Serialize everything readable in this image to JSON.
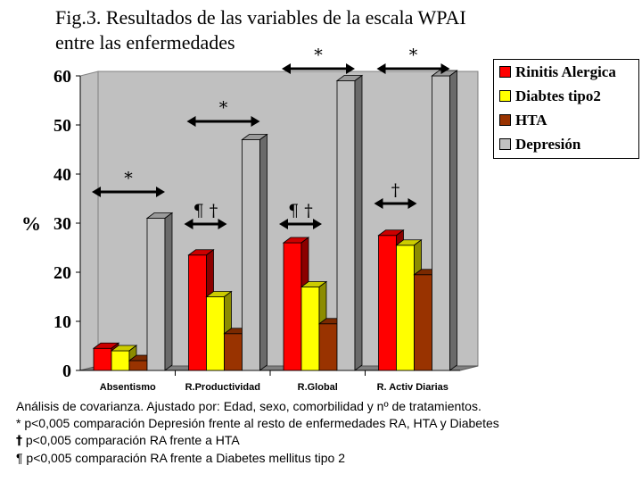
{
  "title": {
    "line1": "Fig.3.  Resultados de las variables de la escala WPAI",
    "line2": "entre las enfermedades"
  },
  "chart_data": {
    "type": "bar",
    "style": "3d-clustered-column",
    "categories": [
      "Absentismo",
      "R.Productividad",
      "R.Global",
      "R. Activ Diarias"
    ],
    "series": [
      {
        "name": "Rinitis Alergica",
        "color": "#ff0000",
        "values": [
          4.5,
          23.5,
          26,
          27.5
        ]
      },
      {
        "name": "Diabtes tipo2",
        "color": "#ffff00",
        "values": [
          4,
          15,
          17,
          25.5
        ]
      },
      {
        "name": "HTA",
        "color": "#993300",
        "values": [
          2,
          7.5,
          9.5,
          19.5
        ]
      },
      {
        "name": "Depresión",
        "color": "#c0c0c0",
        "values": [
          31,
          47,
          59,
          60
        ]
      }
    ],
    "ylabel": "%",
    "ylim": [
      0,
      60
    ],
    "yticks": [
      0,
      10,
      20,
      30,
      40,
      50,
      60
    ],
    "grid": false,
    "legend_position": "right",
    "annotations": [
      {
        "category": "Absentismo",
        "symbol": "*",
        "level": "upper"
      },
      {
        "category": "R.Productividad",
        "symbol": "¶ †",
        "level": "lower"
      },
      {
        "category": "R.Productividad",
        "symbol": "*",
        "level": "upper"
      },
      {
        "category": "R.Global",
        "symbol": "¶ †",
        "level": "lower"
      },
      {
        "category": "R.Global",
        "symbol": "*",
        "level": "upper"
      },
      {
        "category": "R. Activ Diarias",
        "symbol": "†",
        "level": "lower"
      },
      {
        "category": "R. Activ Diarias",
        "symbol": "*",
        "level": "upper"
      }
    ]
  },
  "notes": {
    "line1": "Análisis de covarianza.  Ajustado por:  Edad, sexo, comorbilidad  y nº de tratamientos.",
    "line2": "* p<0,005  comparación Depresión frente al resto de enfermedades  RA, HTA  y Diabetes",
    "line3_symbol": "†",
    "line3": " p<0,005 comparación RA frente a HTA",
    "line4_symbol": "¶",
    "line4": " p<0,005  comparación RA frente a Diabetes mellitus tipo 2"
  }
}
